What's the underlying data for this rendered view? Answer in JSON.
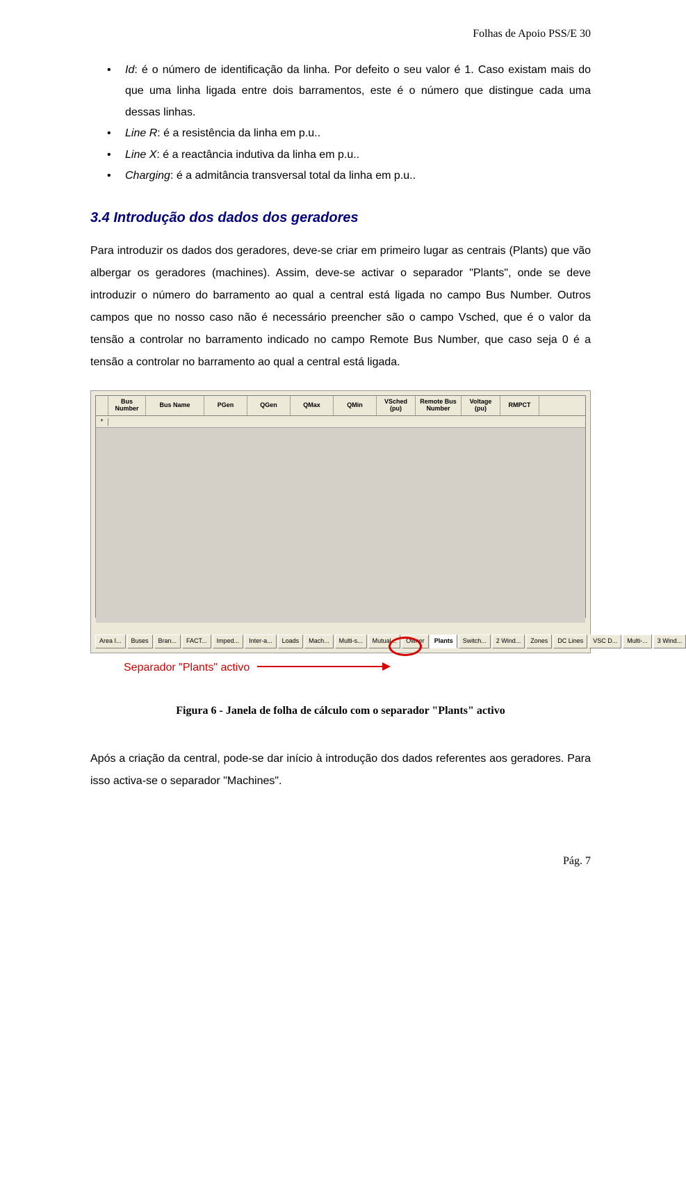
{
  "header": {
    "text": "Folhas de Apoio PSS/E 30"
  },
  "bullets": [
    {
      "term": "Id",
      "text": ": é o número de identificação da linha. Por defeito o seu valor é 1. Caso existam mais do que uma linha ligada entre dois barramentos, este é o número que distingue cada uma dessas linhas."
    },
    {
      "term": "Line R",
      "text": ": é a resistência da linha em p.u.."
    },
    {
      "term": "Line X",
      "text": ": é a reactância indutiva da linha em p.u.."
    },
    {
      "term": "Charging",
      "text": ": é a admitância transversal total da linha em p.u.."
    }
  ],
  "section": {
    "heading": "3.4 Introdução dos dados dos geradores"
  },
  "paragraph1": "Para introduzir os dados dos geradores, deve-se criar em primeiro lugar as centrais (Plants) que vão albergar os geradores (machines). Assim, deve-se activar o separador \"Plants\", onde se deve introduzir o número do barramento ao qual a central está ligada no campo Bus Number. Outros campos que no nosso caso não é necessário preencher são o campo Vsched, que é o valor da tensão a controlar no barramento indicado no campo Remote Bus Number, que caso seja 0 é a tensão a controlar no barramento ao qual a central está ligada.",
  "spreadsheet": {
    "columns": [
      {
        "label": "Bus Number",
        "width": 54
      },
      {
        "label": "Bus Name",
        "width": 84
      },
      {
        "label": "PGen",
        "width": 62
      },
      {
        "label": "QGen",
        "width": 62
      },
      {
        "label": "QMax",
        "width": 62
      },
      {
        "label": "QMin",
        "width": 62
      },
      {
        "label": "VSched (pu)",
        "width": 56
      },
      {
        "label": "Remote Bus Number",
        "width": 66
      },
      {
        "label": "Voltage (pu)",
        "width": 56
      },
      {
        "label": "RMPCT",
        "width": 56
      }
    ],
    "row_marker": "*",
    "tabs": [
      "Area I...",
      "Buses",
      "Bran...",
      "FACT...",
      "Imped...",
      "Inter-a...",
      "Loads",
      "Mach...",
      "Multi-s...",
      "Mutual...",
      "Owner",
      "Plants",
      "Switch...",
      "2 Wind...",
      "Zones",
      "DC Lines",
      "VSC D...",
      "Multi-...",
      "3 Wind..."
    ],
    "active_tab_index": 11,
    "colors": {
      "window_bg": "#ece9d8",
      "grid_bg": "#d4d0c8",
      "border": "#808080",
      "highlight": "#d80000"
    }
  },
  "annotation": {
    "text": "Separador \"Plants\" activo"
  },
  "caption": "Figura 6 - Janela de folha de cálculo com o separador \"Plants\" activo",
  "paragraph2": "Após a criação da central, pode-se dar início à introdução dos dados referentes aos geradores. Para isso activa-se o separador \"Machines\".",
  "footer": {
    "text": "Pág. 7"
  }
}
